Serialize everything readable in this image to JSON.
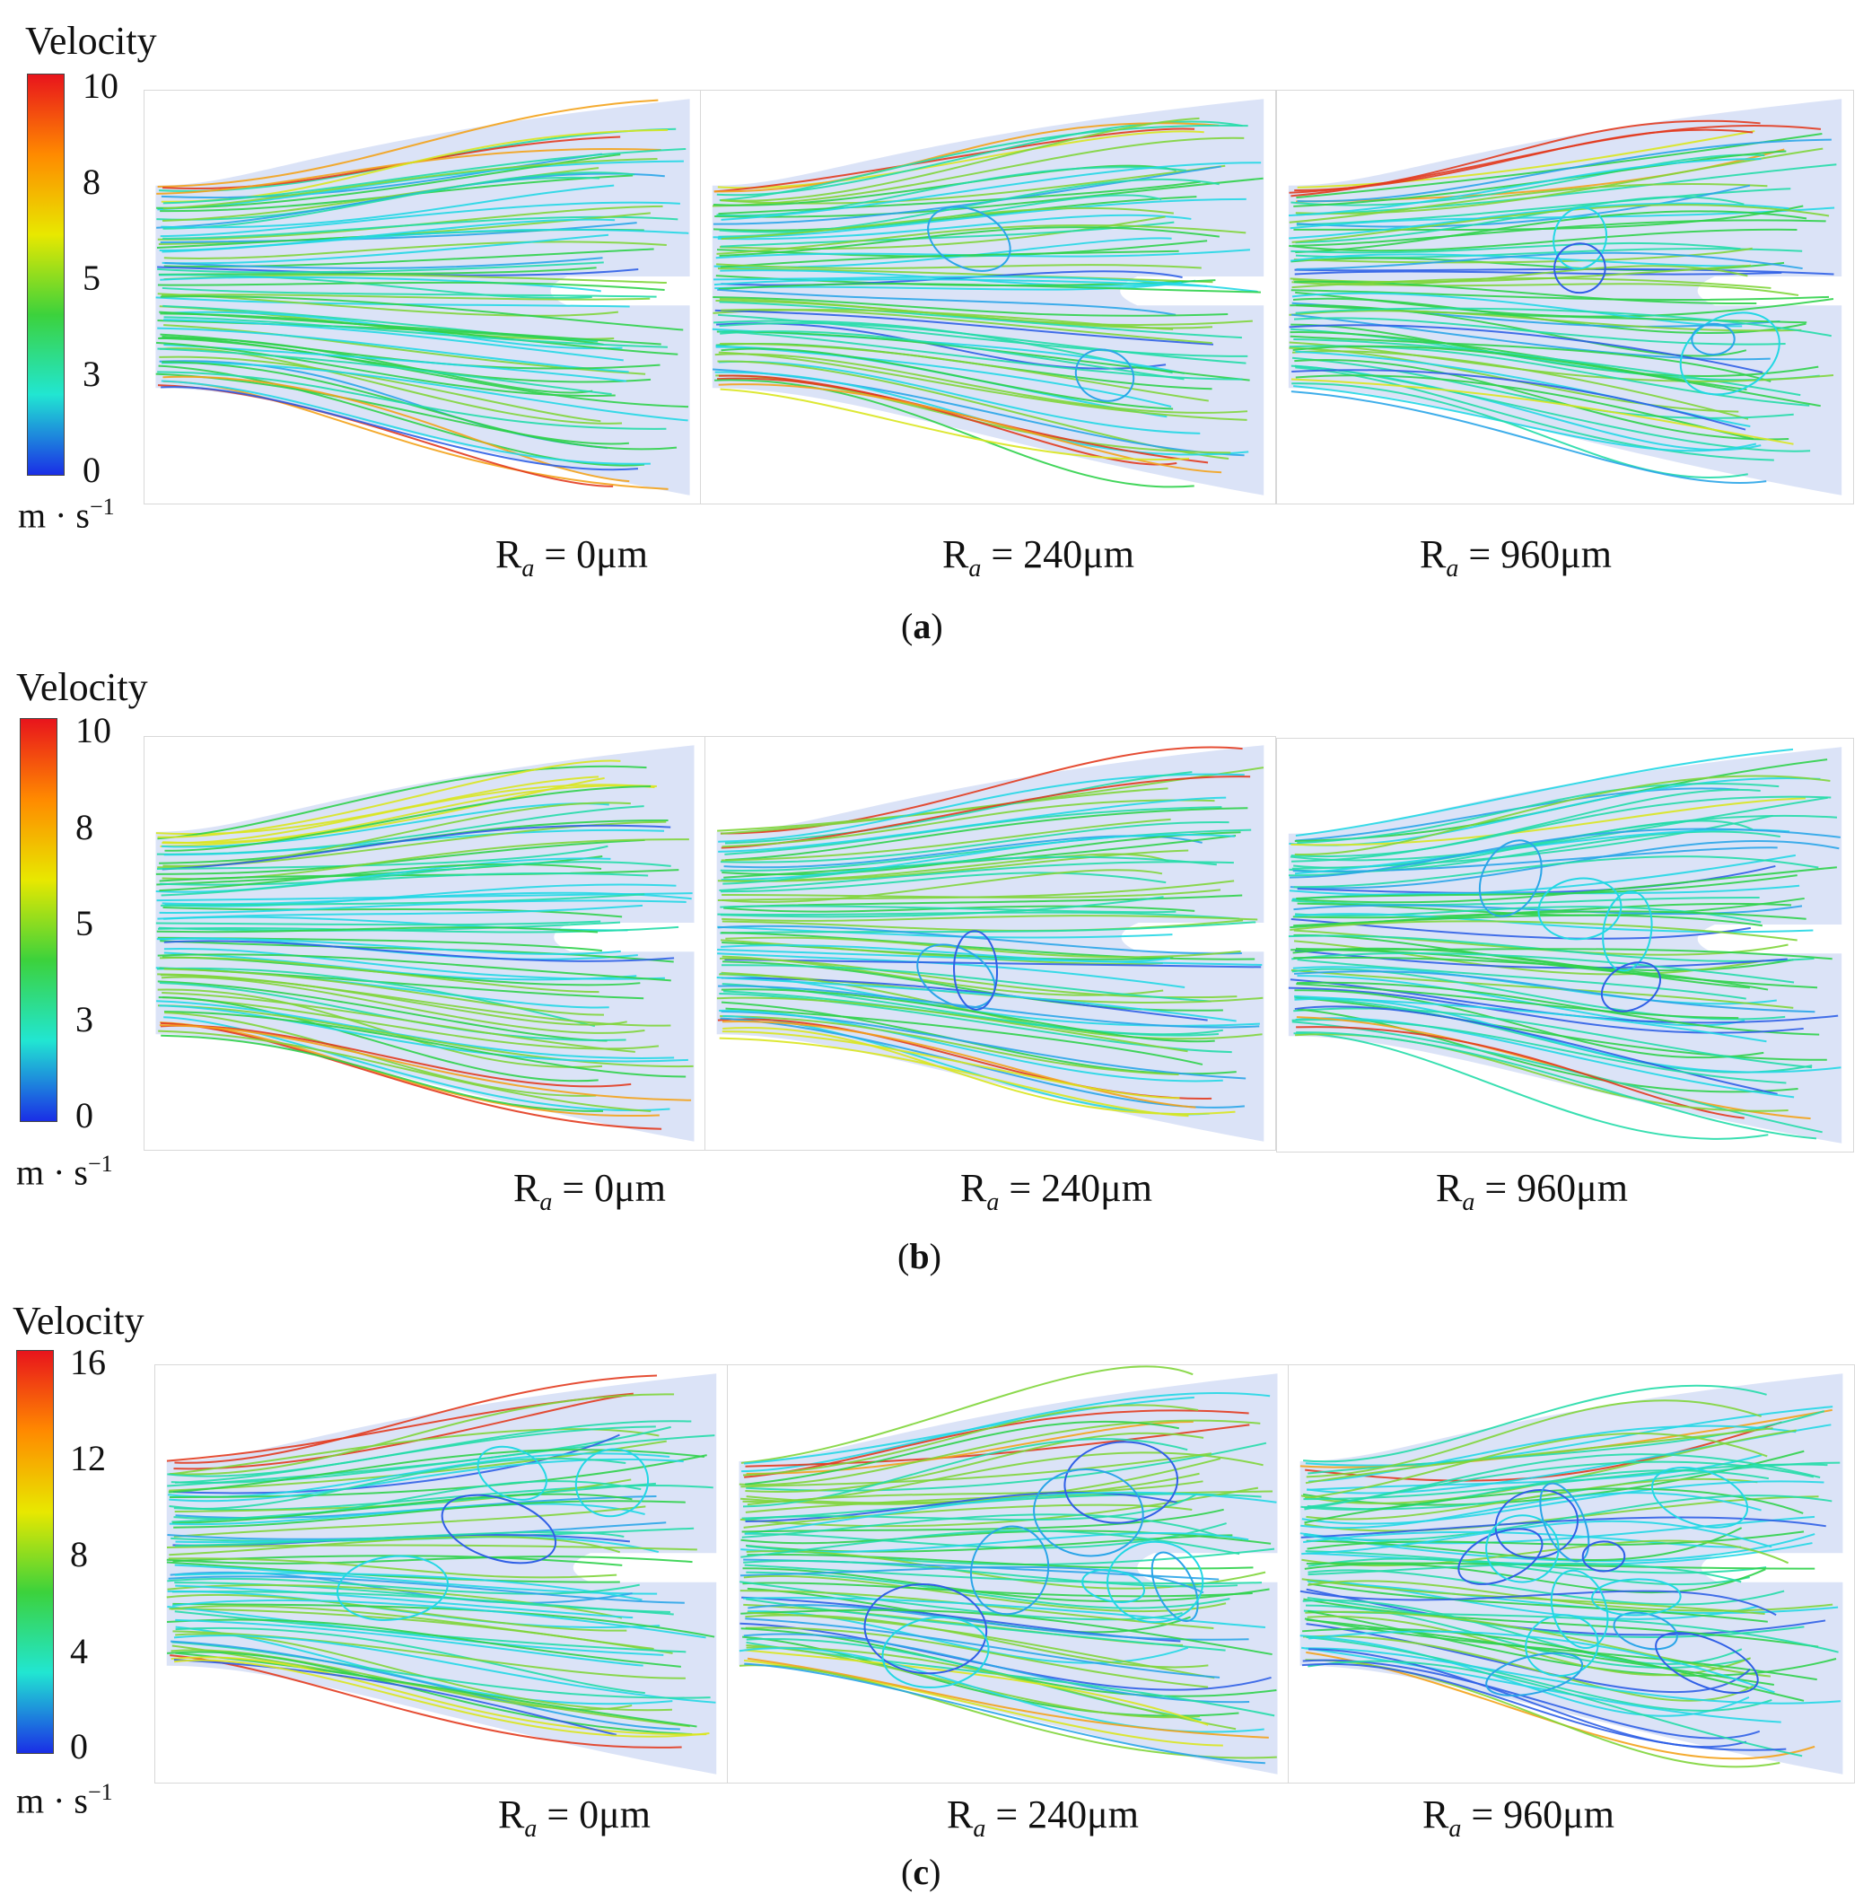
{
  "rows": [
    {
      "caption_letter": "a",
      "legend_title": "Velocity",
      "ticks": [
        "10",
        "8",
        "5",
        "3",
        "0"
      ],
      "unit_base": "m · s",
      "unit_exp": "−1",
      "colormap": [
        "#e8141c",
        "#ff8a00",
        "#e8e800",
        "#3cd23c",
        "#21e6d2",
        "#1a2ee6"
      ],
      "panels": [
        {
          "ra_symbol": "R",
          "ra_sub": "a",
          "ra_value": " = 0μm"
        },
        {
          "ra_symbol": "R",
          "ra_sub": "a",
          "ra_value": " = 240μm"
        },
        {
          "ra_symbol": "R",
          "ra_sub": "a",
          "ra_value": " = 960μm"
        }
      ]
    },
    {
      "caption_letter": "b",
      "legend_title": "Velocity",
      "ticks": [
        "10",
        "8",
        "5",
        "3",
        "0"
      ],
      "unit_base": "m · s",
      "unit_exp": "−1",
      "colormap": [
        "#e8141c",
        "#ff8a00",
        "#e8e800",
        "#3cd23c",
        "#21e6d2",
        "#1a2ee6"
      ],
      "panels": [
        {
          "ra_symbol": "R",
          "ra_sub": "a",
          "ra_value": " = 0μm"
        },
        {
          "ra_symbol": "R",
          "ra_sub": "a",
          "ra_value": " = 240μm"
        },
        {
          "ra_symbol": "R",
          "ra_sub": "a",
          "ra_value": " = 960μm"
        }
      ]
    },
    {
      "caption_letter": "c",
      "legend_title": "Velocity",
      "ticks": [
        "16",
        "12",
        "8",
        "4",
        "0"
      ],
      "unit_base": "m · s",
      "unit_exp": "−1",
      "colormap": [
        "#e8141c",
        "#ff8a00",
        "#e8e800",
        "#3cd23c",
        "#21e6d2",
        "#1a2ee6"
      ],
      "panels": [
        {
          "ra_symbol": "R",
          "ra_sub": "a",
          "ra_value": " = 0μm"
        },
        {
          "ra_symbol": "R",
          "ra_sub": "a",
          "ra_value": " = 240μm"
        },
        {
          "ra_symbol": "R",
          "ra_sub": "a",
          "ra_value": " = 960μm"
        }
      ]
    }
  ],
  "colors": {
    "domain_fill": "#dbe3f7",
    "streamline_palette": [
      "#e23a1e",
      "#f3a21a",
      "#d9e51e",
      "#7fd53a",
      "#2fd24a",
      "#23dba8",
      "#22d7e4",
      "#2aa5e8",
      "#2f5fe6"
    ]
  }
}
